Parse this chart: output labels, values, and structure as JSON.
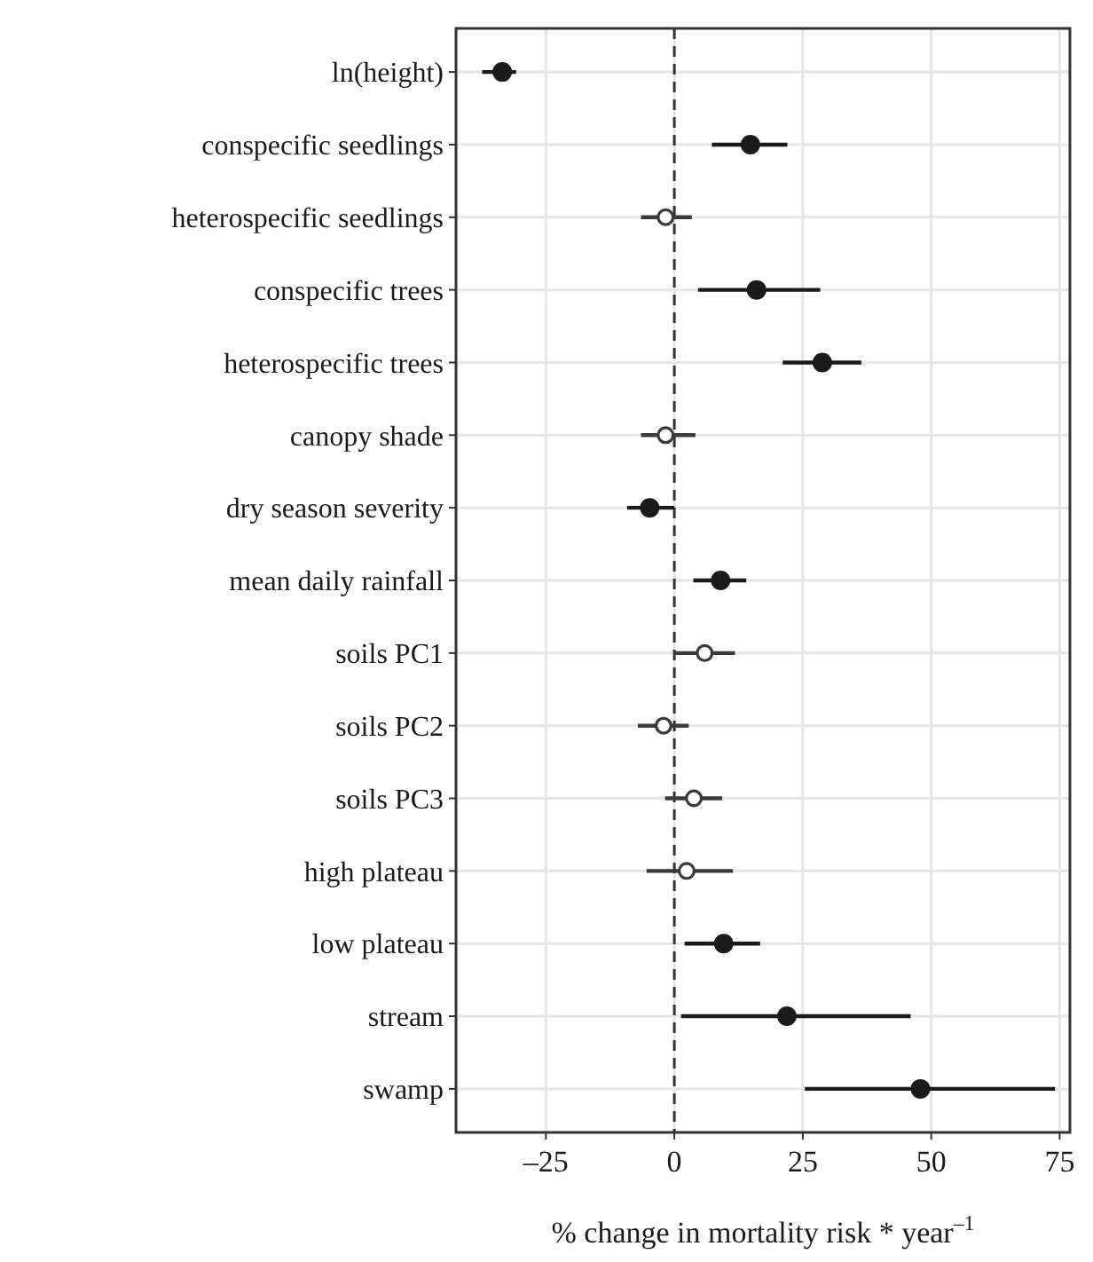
{
  "chart_data": {
    "type": "scatter",
    "orientation": "horizontal",
    "xlabel": "% change in mortality risk * year$^{–1}$",
    "categories": [
      "ln(height)",
      "conspecific seedlings",
      "heterospecific seedlings",
      "conspecific trees",
      "heterospecific trees",
      "canopy shade",
      "dry season severity",
      "mean daily rainfall",
      "soils PC1",
      "soils PC2",
      "soils PC3",
      "high plateau",
      "low plateau",
      "stream",
      "swamp"
    ],
    "series": [
      {
        "color": "#1a1a1a",
        "values": [
          -33.5,
          14.8,
          null,
          16.0,
          28.8,
          null,
          -4.8,
          9.0,
          null,
          null,
          null,
          null,
          9.6,
          21.9,
          47.9
        ],
        "errors": [
          [
            -37.4,
            -30.8
          ],
          [
            7.3,
            22.0
          ],
          null,
          [
            4.6,
            28.4
          ],
          [
            21.1,
            36.4
          ],
          null,
          [
            -9.2,
            0
          ],
          [
            3.7,
            14.0
          ],
          null,
          null,
          null,
          null,
          [
            2.0,
            16.7
          ],
          [
            1.3,
            46.0
          ],
          [
            25.4,
            74.1
          ]
        ]
      },
      {
        "color": "#3a3a3a",
        "values": [
          null,
          null,
          -1.7,
          null,
          null,
          -1.7,
          null,
          null,
          5.9,
          -2.1,
          3.8,
          2.4,
          null,
          null,
          null
        ],
        "errors": [
          null,
          null,
          [
            -6.5,
            3.4
          ],
          null,
          null,
          [
            -6.5,
            4.1
          ],
          null,
          null,
          [
            0,
            11.8
          ],
          [
            -7.1,
            2.8
          ],
          [
            -1.8,
            9.3
          ],
          [
            -5.4,
            11.4
          ],
          null,
          null,
          null
        ]
      }
    ],
    "xlim": [
      -42.5,
      77
    ],
    "xticks": [
      {
        "value": -25,
        "label": "–25"
      },
      0,
      25,
      50,
      75
    ],
    "grid": true,
    "marker": "circle",
    "ref_lines": [
      {
        "axis": "x",
        "value": 0,
        "line_style": "dashed",
        "color": "#333333"
      }
    ]
  }
}
